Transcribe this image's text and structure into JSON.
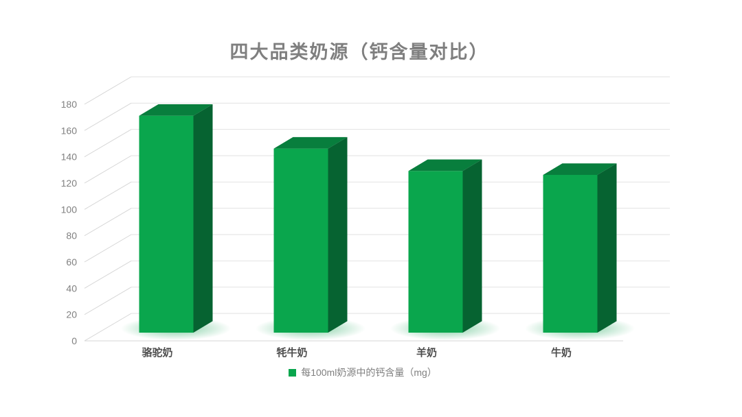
{
  "title": "四大品类奶源（钙含量对比）",
  "legend": {
    "label": "每100ml奶源中的钙含量（mg）"
  },
  "colors": {
    "bar_front": "#0aa64d",
    "bar_top": "#087e3d",
    "bar_side": "#066331",
    "glow": "#15a454",
    "grid_line": "#e2e2e2",
    "axis_line": "#d6d6d6",
    "tick_text": "#808080",
    "category_text": "#4d4d4d",
    "title_text": "#7f7f7f"
  },
  "chart_data": {
    "type": "bar",
    "style": "3d-column",
    "title": "四大品类奶源（钙含量对比）",
    "categories": [
      "骆驼奶",
      "牦牛奶",
      "羊奶",
      "牛奶"
    ],
    "series": [
      {
        "name": "每100ml奶源中的钙含量（mg）",
        "values": [
          165,
          140,
          123,
          120
        ]
      }
    ],
    "xlabel": "",
    "ylabel": "",
    "ylim": [
      0,
      180
    ],
    "ytick_step": 20,
    "yticks": [
      0,
      20,
      40,
      60,
      80,
      100,
      120,
      140,
      160,
      180
    ],
    "grid": true,
    "legend_position": "bottom"
  }
}
